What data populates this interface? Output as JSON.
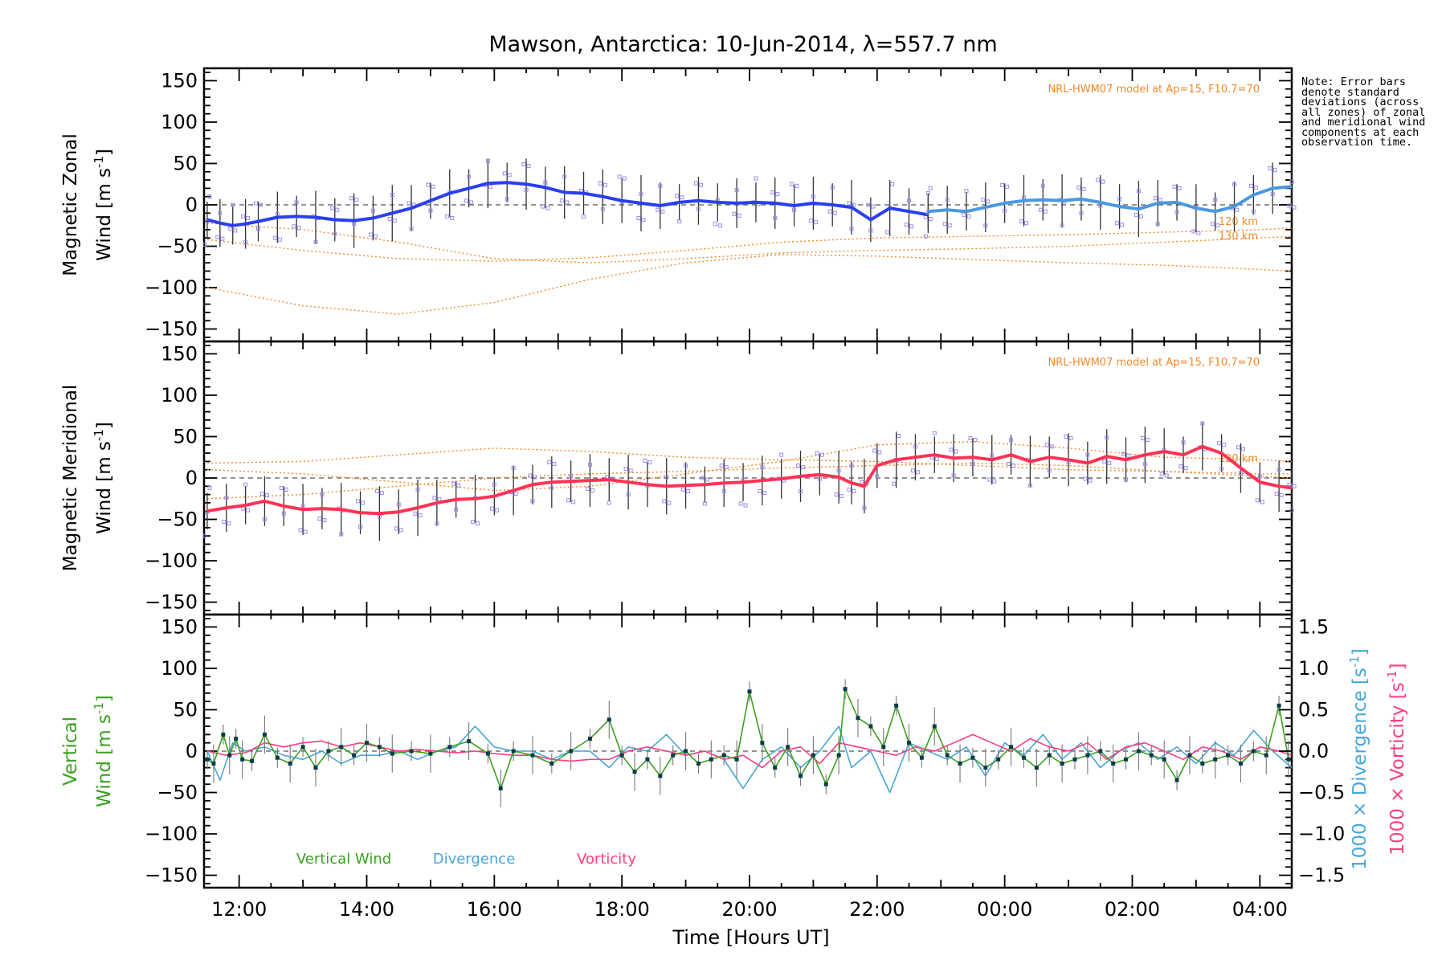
{
  "title": "Mawson, Antarctica: 10-Jun-2014, λ=557.7 nm",
  "note": "Note: Error bars denote standard deviations (across all zones) of zonal and meridional wind components at each observation time.",
  "colors": {
    "zonal": "#2a3ff0",
    "zonal_light": "#4a98e0",
    "meridional": "#ff3355",
    "vertical": "#3aa020",
    "divergence": "#48a6d8",
    "vorticity": "#ff3d80",
    "model": "#f08a2b",
    "scatter": "#9a8ee8",
    "errorbar": "#333333"
  },
  "chart_data": [
    {
      "type": "line",
      "panel": "zonal",
      "ylabel": [
        "Magnetic Zonal",
        "Wind [m s",
        "-1",
        "]"
      ],
      "ylim": [
        -165,
        165
      ],
      "yticks": [
        -150,
        -100,
        -50,
        0,
        50,
        100,
        150
      ],
      "model_label": "NRL-HWM07 model at Ap=15, F10.7=70",
      "model_alt_labels": [
        "120 km",
        "130 km"
      ],
      "series": [
        {
          "x": [
            11.5,
            11.7,
            11.9,
            12.1,
            12.3,
            12.6,
            12.9,
            13.2,
            13.5,
            13.8,
            14.1,
            14.4,
            14.7,
            15.0,
            15.3,
            15.6,
            15.9,
            16.2,
            16.5,
            16.8,
            17.1,
            17.4,
            17.7,
            18.0,
            18.3,
            18.6,
            18.9,
            19.2,
            19.5,
            19.8,
            20.1,
            20.4,
            20.7,
            21.0,
            21.3,
            21.6,
            21.9,
            22.2,
            22.5,
            22.8
          ],
          "values": [
            -18,
            -22,
            -25,
            -23,
            -20,
            -15,
            -14,
            -15,
            -18,
            -19,
            -16,
            -10,
            -4,
            5,
            14,
            20,
            26,
            27,
            25,
            21,
            15,
            14,
            10,
            5,
            2,
            -1,
            3,
            5,
            3,
            2,
            3,
            2,
            -1,
            2,
            0,
            -3,
            -18,
            -4,
            -8,
            -12
          ]
        },
        {
          "x": [
            22.8,
            23.1,
            23.4,
            23.7,
            24.0,
            24.3,
            24.6,
            24.9,
            25.2,
            25.5,
            25.8,
            26.1,
            26.4,
            26.7,
            27.0,
            27.3,
            27.6,
            27.9,
            28.2,
            28.5
          ],
          "values": [
            -8,
            -6,
            -8,
            -3,
            2,
            5,
            6,
            5,
            7,
            3,
            -2,
            -5,
            2,
            3,
            -4,
            -8,
            -2,
            12,
            20,
            22
          ]
        }
      ],
      "model_curves": [
        {
          "x": [
            11.5,
            13,
            14.5,
            16,
            17.5,
            19,
            20.5,
            22,
            23.5,
            25,
            26.5,
            28,
            28.5
          ],
          "values": [
            -22,
            -30,
            -45,
            -65,
            -70,
            -65,
            -58,
            -55,
            -53,
            -50,
            -45,
            -40,
            -38
          ]
        },
        {
          "x": [
            11.5,
            13,
            14.5,
            16,
            17.5,
            19,
            20.5,
            22,
            23.5,
            25,
            26.5,
            28,
            28.5
          ],
          "values": [
            -100,
            -122,
            -132,
            -118,
            -90,
            -70,
            -60,
            -62,
            -66,
            -70,
            -73,
            -78,
            -80
          ]
        },
        {
          "x": [
            11.5,
            13,
            14.5,
            16,
            17.5,
            19,
            20.5,
            22,
            23.5,
            25,
            26.5,
            28,
            28.5
          ],
          "values": [
            -42,
            -55,
            -65,
            -68,
            -64,
            -55,
            -45,
            -40,
            -38,
            -36,
            -33,
            -30,
            -28
          ]
        }
      ]
    },
    {
      "type": "line",
      "panel": "meridional",
      "ylabel": [
        "Magnetic Meridional",
        "Wind [m s",
        "-1",
        "]"
      ],
      "ylim": [
        -165,
        165
      ],
      "yticks": [
        -150,
        -100,
        -50,
        0,
        50,
        100,
        150
      ],
      "model_label": "NRL-HWM07 model at Ap=15, F10.7=70",
      "model_alt_labels": [
        "120 km"
      ],
      "series": [
        {
          "x": [
            11.5,
            11.8,
            12.1,
            12.4,
            12.7,
            13.0,
            13.3,
            13.6,
            13.9,
            14.2,
            14.5,
            14.8,
            15.1,
            15.4,
            15.7,
            16.0,
            16.3,
            16.6,
            16.9,
            17.2,
            17.5,
            17.8,
            18.1,
            18.4,
            18.7,
            19.0,
            19.3,
            19.6,
            19.9,
            20.2,
            20.5,
            20.8,
            21.1,
            21.4,
            21.6,
            21.8,
            22.0,
            22.3,
            22.6,
            22.9,
            23.2,
            23.5,
            23.8,
            24.1,
            24.4,
            24.7,
            25.0,
            25.3,
            25.6,
            25.9,
            26.2,
            26.5,
            26.8,
            27.1,
            27.4,
            27.7,
            28.0,
            28.3,
            28.5
          ],
          "values": [
            -40,
            -36,
            -33,
            -28,
            -34,
            -38,
            -37,
            -38,
            -42,
            -43,
            -41,
            -36,
            -30,
            -26,
            -25,
            -22,
            -15,
            -8,
            -5,
            -4,
            -3,
            -2,
            -5,
            -8,
            -10,
            -9,
            -8,
            -6,
            -5,
            -3,
            -1,
            2,
            4,
            1,
            -6,
            -10,
            15,
            22,
            25,
            28,
            24,
            25,
            22,
            28,
            20,
            25,
            22,
            18,
            26,
            22,
            28,
            32,
            28,
            38,
            30,
            12,
            -5,
            -10,
            -12
          ]
        }
      ],
      "model_curves": [
        {
          "x": [
            11.5,
            13,
            14.5,
            16,
            17.5,
            19,
            20.5,
            22,
            23.5,
            25,
            26.5,
            28,
            28.5
          ],
          "values": [
            18,
            20,
            28,
            36,
            32,
            25,
            22,
            20,
            15,
            10,
            8,
            5,
            5
          ]
        },
        {
          "x": [
            11.5,
            13,
            14.5,
            16,
            17.5,
            19,
            20.5,
            22,
            23.5,
            25,
            26.5,
            28,
            28.5
          ],
          "values": [
            10,
            5,
            -5,
            -15,
            -10,
            5,
            20,
            40,
            44,
            36,
            25,
            22,
            20
          ]
        },
        {
          "x": [
            11.5,
            13,
            14.5,
            16,
            17.5,
            19,
            20.5,
            22,
            23.5,
            25,
            26.5,
            28,
            28.5
          ],
          "values": [
            -25,
            -20,
            -10,
            0,
            5,
            8,
            12,
            15,
            18,
            15,
            8,
            2,
            0
          ]
        }
      ]
    },
    {
      "type": "line",
      "panel": "vertical",
      "ylabel_vertical": [
        "Vertical",
        "Wind [m s",
        "-1",
        "]"
      ],
      "ylim": [
        -165,
        165
      ],
      "yticks": [
        -150,
        -100,
        -50,
        0,
        50,
        100,
        150
      ],
      "right_axis_1": {
        "label": [
          "1000 × Divergence [s",
          "-1",
          "]"
        ],
        "ylim": [
          -1.65,
          1.65
        ],
        "ticks": [
          -1.5,
          -1.0,
          -0.5,
          0.0,
          0.5,
          1.0,
          1.5
        ],
        "tick_labels": [
          "-1.5",
          "-1.0",
          "-0.5",
          "0.0",
          "0.5",
          "1.0",
          "1.5"
        ]
      },
      "right_axis_2": {
        "label": [
          "1000 × Vorticity [s",
          "-1",
          "]"
        ]
      },
      "legend": [
        "Vertical Wind",
        "Divergence",
        "Vorticity"
      ],
      "series": [
        {
          "name": "Vertical Wind",
          "x": [
            11.5,
            11.6,
            11.75,
            11.85,
            11.95,
            12.05,
            12.2,
            12.4,
            12.6,
            12.8,
            13.0,
            13.2,
            13.4,
            13.6,
            13.8,
            14.0,
            14.2,
            14.4,
            14.7,
            15.0,
            15.3,
            15.6,
            15.9,
            16.1,
            16.3,
            16.6,
            16.9,
            17.2,
            17.5,
            17.8,
            18.0,
            18.2,
            18.4,
            18.6,
            18.8,
            19.0,
            19.2,
            19.4,
            19.6,
            19.8,
            20.0,
            20.2,
            20.4,
            20.6,
            20.8,
            21.0,
            21.2,
            21.4,
            21.5,
            21.7,
            21.9,
            22.1,
            22.3,
            22.5,
            22.7,
            22.9,
            23.1,
            23.3,
            23.5,
            23.7,
            23.9,
            24.1,
            24.3,
            24.5,
            24.7,
            24.9,
            25.1,
            25.3,
            25.5,
            25.7,
            25.9,
            26.1,
            26.3,
            26.5,
            26.7,
            26.9,
            27.1,
            27.3,
            27.5,
            27.7,
            27.9,
            28.1,
            28.3,
            28.45
          ],
          "values": [
            -10,
            -15,
            20,
            -5,
            15,
            -10,
            -12,
            20,
            -8,
            -15,
            5,
            -20,
            0,
            5,
            -5,
            10,
            5,
            -3,
            0,
            -3,
            5,
            12,
            -3,
            -45,
            0,
            -5,
            -15,
            0,
            15,
            38,
            -5,
            -25,
            -10,
            -30,
            -5,
            0,
            -15,
            -10,
            -5,
            -10,
            72,
            10,
            -20,
            5,
            -30,
            -5,
            -40,
            -5,
            75,
            40,
            30,
            5,
            55,
            10,
            -8,
            30,
            -5,
            -15,
            -8,
            -20,
            -10,
            5,
            -8,
            -20,
            -5,
            -15,
            -10,
            -5,
            0,
            -15,
            -10,
            0,
            -5,
            -10,
            -35,
            -5,
            -15,
            -10,
            -5,
            -15,
            0,
            -5,
            55,
            -10
          ]
        },
        {
          "name": "Divergence",
          "x": [
            11.5,
            11.7,
            11.9,
            12.1,
            12.4,
            12.7,
            13.0,
            13.3,
            13.6,
            13.9,
            14.2,
            14.5,
            14.8,
            15.1,
            15.4,
            15.7,
            16.0,
            16.3,
            16.6,
            16.9,
            17.2,
            17.5,
            17.8,
            18.1,
            18.4,
            18.7,
            19.0,
            19.3,
            19.6,
            19.9,
            20.2,
            20.5,
            20.8,
            21.1,
            21.4,
            21.6,
            21.9,
            22.2,
            22.5,
            22.8,
            23.1,
            23.4,
            23.7,
            24.0,
            24.3,
            24.6,
            24.9,
            25.2,
            25.5,
            25.8,
            26.1,
            26.4,
            26.7,
            27.0,
            27.3,
            27.6,
            27.9,
            28.2,
            28.5
          ],
          "values": [
            0,
            -0.35,
            0.1,
            0.0,
            0.05,
            -0.05,
            -0.1,
            0.0,
            -0.15,
            -0.05,
            -0.05,
            0.0,
            -0.1,
            0.0,
            0.05,
            0.3,
            0.05,
            0.0,
            0.0,
            -0.1,
            0.0,
            0.0,
            -0.2,
            0.05,
            0.0,
            0.2,
            -0.05,
            0.0,
            -0.1,
            -0.45,
            -0.1,
            0.05,
            -0.2,
            0.0,
            0.3,
            -0.2,
            0.0,
            -0.5,
            0.1,
            0.0,
            -0.1,
            0.05,
            -0.3,
            0.1,
            -0.05,
            0.2,
            -0.1,
            0.1,
            -0.2,
            0.0,
            0.1,
            -0.1,
            0.05,
            -0.15,
            0.1,
            -0.05,
            0.25,
            0.0,
            -0.2
          ]
        },
        {
          "name": "Vorticity",
          "x": [
            11.5,
            11.8,
            12.1,
            12.4,
            12.7,
            13.0,
            13.3,
            13.6,
            13.9,
            14.2,
            14.5,
            14.8,
            15.1,
            15.4,
            15.7,
            16.0,
            16.3,
            16.6,
            16.9,
            17.2,
            17.5,
            17.8,
            18.1,
            18.4,
            18.7,
            19.0,
            19.3,
            19.6,
            19.9,
            20.2,
            20.5,
            20.8,
            21.1,
            21.4,
            21.7,
            22.0,
            22.3,
            22.6,
            22.9,
            23.2,
            23.5,
            23.8,
            24.1,
            24.4,
            24.7,
            25.0,
            25.3,
            25.6,
            25.9,
            26.2,
            26.5,
            26.8,
            27.1,
            27.4,
            27.7,
            28.0,
            28.3,
            28.5
          ],
          "values": [
            0,
            -0.05,
            -0.02,
            0.1,
            0.05,
            0.1,
            0.12,
            0.05,
            0.1,
            0.05,
            0.0,
            0.02,
            0.0,
            -0.02,
            0.0,
            -0.03,
            -0.05,
            -0.05,
            -0.1,
            -0.12,
            -0.1,
            -0.1,
            0.0,
            0.05,
            0.0,
            -0.05,
            0.0,
            -0.1,
            -0.05,
            -0.2,
            0.0,
            0.05,
            -0.15,
            0.1,
            0.05,
            0.0,
            -0.05,
            0.05,
            0.0,
            0.1,
            0.2,
            0.1,
            0.0,
            0.15,
            0.05,
            0.0,
            0.1,
            -0.1,
            0.05,
            0.1,
            0.0,
            -0.1,
            0.05,
            0.0,
            -0.1,
            0.05,
            0.0,
            -0.05
          ]
        }
      ]
    }
  ],
  "x_axis": {
    "label": "Time [Hours UT]",
    "xlim": [
      11.45,
      28.5
    ],
    "ticks": [
      12,
      14,
      16,
      18,
      20,
      22,
      24,
      26,
      28
    ],
    "tick_labels": [
      "12:00",
      "14:00",
      "16:00",
      "18:00",
      "20:00",
      "22:00",
      "00:00",
      "02:00",
      "04:00"
    ]
  }
}
